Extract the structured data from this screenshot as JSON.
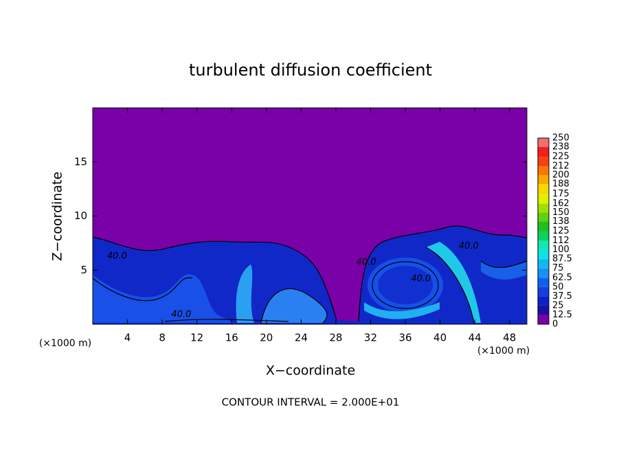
{
  "chart_data": {
    "type": "contour",
    "title": "turbulent diffusion coefficient",
    "x_label": "X−coordinate",
    "y_label": "Z−coordinate",
    "axis_unit": "(×1000 m)",
    "footnote": "CONTOUR INTERVAL = 2.000E+01",
    "xlim": [
      0,
      50
    ],
    "xticks": [
      4,
      8,
      12,
      16,
      20,
      24,
      28,
      32,
      36,
      40,
      44,
      48
    ],
    "ylim": [
      0,
      20
    ],
    "yticks": [
      5,
      10,
      15
    ],
    "contour_labels": [
      {
        "label": "40.0",
        "x": 2.8,
        "y": 6.3
      },
      {
        "label": "40.0",
        "x": 10.2,
        "y": 0.9
      },
      {
        "label": "40.0",
        "x": 31.5,
        "y": 5.7
      },
      {
        "label": "40.0",
        "x": 37.8,
        "y": 4.2
      },
      {
        "label": "40.0",
        "x": 43.3,
        "y": 7.2
      }
    ],
    "colorbar": {
      "levels": [
        0,
        12.5,
        25,
        37.5,
        50,
        62.5,
        75,
        87.5,
        100,
        112,
        125,
        138,
        150,
        162,
        175,
        188,
        200,
        212,
        225,
        238,
        250
      ],
      "colors": [
        "#7a00a8",
        "#1a10a0",
        "#1020c8",
        "#1040e0",
        "#1060f0",
        "#1890f0",
        "#10b8f0",
        "#10e0e8",
        "#10e8b0",
        "#10d060",
        "#20c020",
        "#60d010",
        "#a0e000",
        "#e0f000",
        "#f8d800",
        "#f8a800",
        "#f87800",
        "#f84010",
        "#f02020",
        "#f07070"
      ]
    }
  }
}
